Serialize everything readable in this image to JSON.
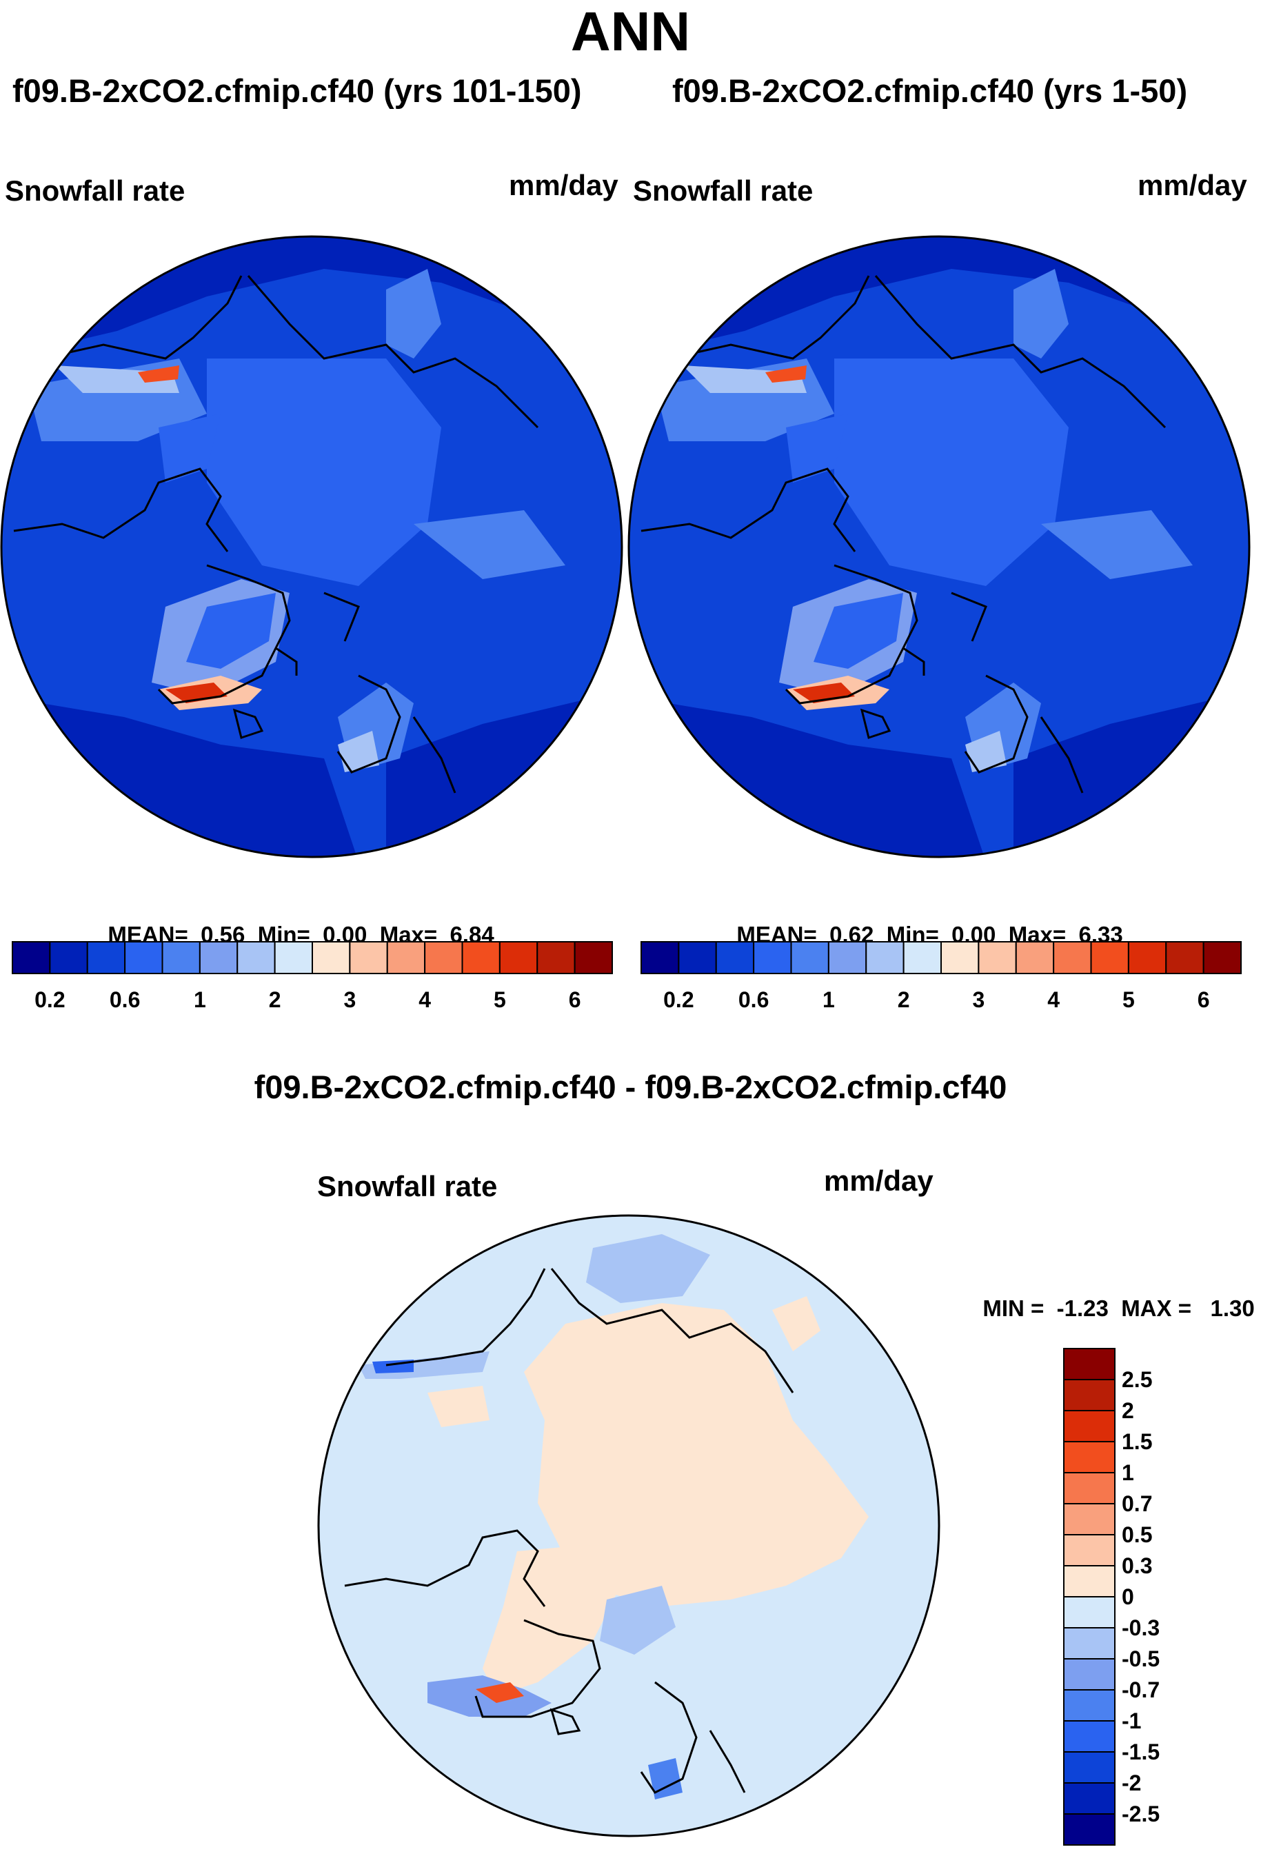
{
  "title": "ANN",
  "panels": [
    {
      "id": "left",
      "case_title": "f09.B-2xCO2.cfmip.cf40 (yrs 101-150)",
      "variable": "Snowfall rate",
      "units": "mm/day",
      "stats": {
        "mean_label": "MEAN=",
        "mean": "0.56",
        "min_label": "Min=",
        "min": "0.00",
        "max_label": "Max=",
        "max": "6.84"
      }
    },
    {
      "id": "right",
      "case_title": "f09.B-2xCO2.cfmip.cf40 (yrs 1-50)",
      "variable": "Snowfall rate",
      "units": "mm/day",
      "stats": {
        "mean_label": "MEAN=",
        "mean": "0.62",
        "min_label": "Min=",
        "min": "0.00",
        "max_label": "Max=",
        "max": "6.33"
      }
    }
  ],
  "colorbar_main": {
    "colors": [
      "#00008b",
      "#0021b8",
      "#0d44d8",
      "#2a63f0",
      "#4b81f0",
      "#7d9ff0",
      "#a8c4f5",
      "#d4e8fa",
      "#fde6d2",
      "#fcc5a8",
      "#f9a07d",
      "#f6774d",
      "#f24e1e",
      "#dc2d08",
      "#b81e06",
      "#880000"
    ],
    "tick_labels": [
      "0.2",
      "0.6",
      "1",
      "2",
      "3",
      "4",
      "5",
      "6"
    ]
  },
  "difference_panel": {
    "case_title": "f09.B-2xCO2.cfmip.cf40 - f09.B-2xCO2.cfmip.cf40",
    "variable": "Snowfall rate",
    "units": "mm/day",
    "stats": {
      "min_label": "MIN =",
      "min": "-1.23",
      "max_label": "MAX =",
      "max": "1.30"
    }
  },
  "colorbar_diff": {
    "colors_top_to_bottom": [
      "#8a0000",
      "#b81e06",
      "#dc2d08",
      "#f24e1e",
      "#f6774d",
      "#f9a07d",
      "#fcc5a8",
      "#fde6d2",
      "#d4e8fa",
      "#a8c4f5",
      "#7d9ff0",
      "#4b81f0",
      "#2a63f0",
      "#0d44d8",
      "#0021b8",
      "#00008b"
    ],
    "tick_labels_top_to_bottom": [
      "2.5",
      "2",
      "1.5",
      "1",
      "0.7",
      "0.5",
      "0.3",
      "0",
      "-0.3",
      "-0.5",
      "-0.7",
      "-1",
      "-1.5",
      "-2",
      "-2.5"
    ]
  },
  "map_colors": {
    "field_deep": "#0021b8",
    "field_mid": "#2a63f0",
    "field_light": "#4b81f0",
    "diff_bg": "#d4e8fa",
    "diff_pos": "#fde6d2",
    "diff_neg": "#a8c4f5"
  }
}
